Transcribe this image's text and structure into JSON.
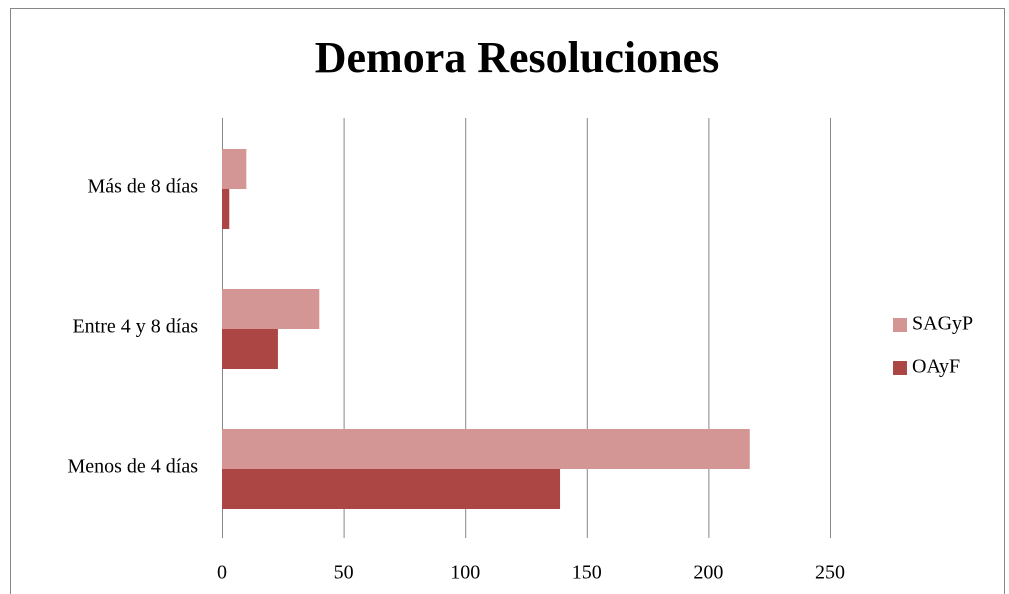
{
  "chart_data": {
    "type": "hbar",
    "title": "Demora Resoluciones",
    "categories": [
      "Menos de 4 días",
      "Entre 4 y 8 días",
      "Más de 8 días"
    ],
    "series": [
      {
        "name": "SAGyP",
        "color": "#d49595",
        "values": [
          217,
          40,
          10
        ]
      },
      {
        "name": "OAyF",
        "color": "#ab4644",
        "values": [
          139,
          23,
          3
        ]
      }
    ],
    "xlim": [
      0,
      250
    ],
    "xticks": [
      0,
      50,
      100,
      150,
      200,
      250
    ],
    "grid": true,
    "legend": "right"
  }
}
